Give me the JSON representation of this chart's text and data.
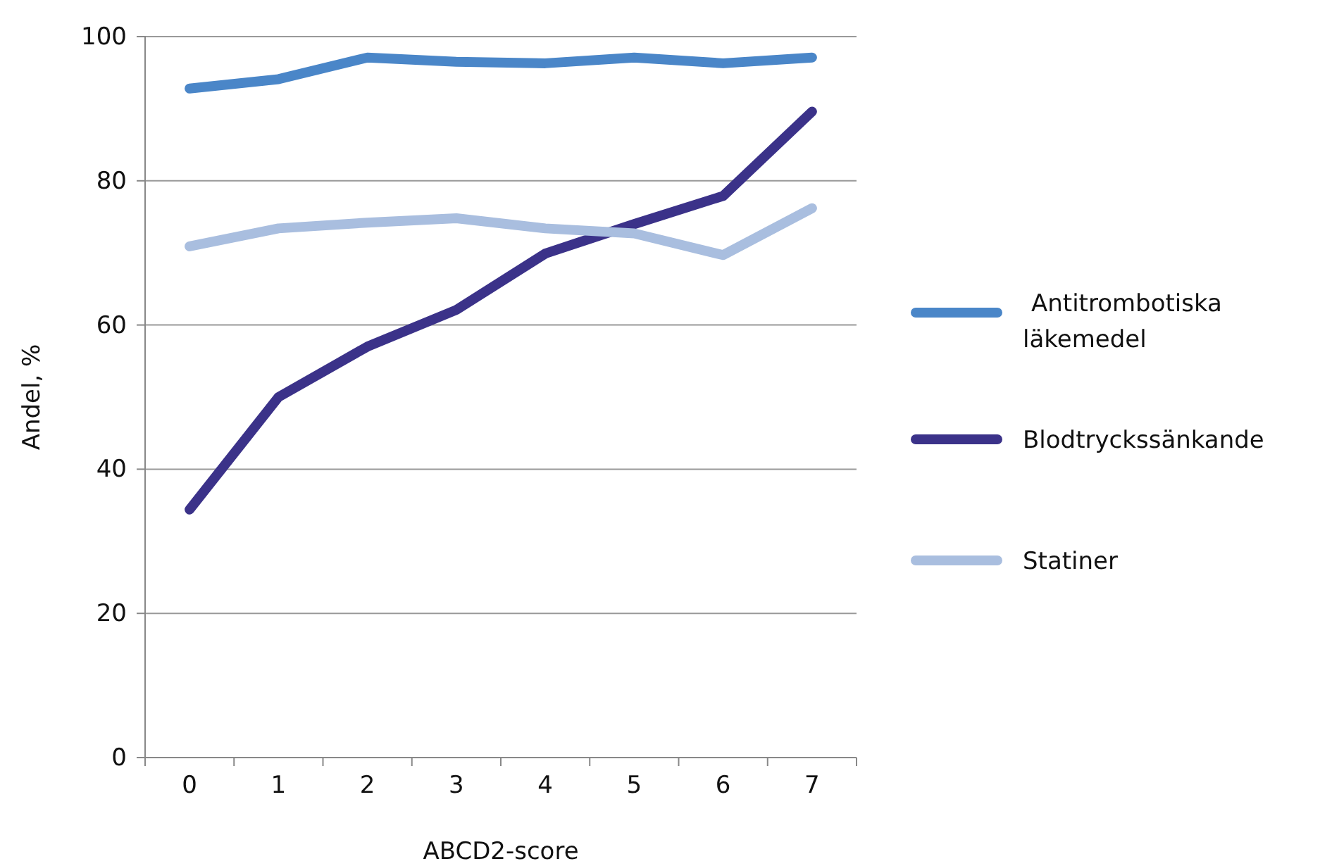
{
  "chart_data": {
    "type": "line",
    "xlabel": "ABCD2-score",
    "ylabel": "Andel, %",
    "categories": [
      "0",
      "1",
      "2",
      "3",
      "4",
      "5",
      "6",
      "7"
    ],
    "ylim": [
      0,
      100
    ],
    "yticks": [
      0,
      20,
      40,
      60,
      80,
      100
    ],
    "grid": "y",
    "legend": "right",
    "marker": "none",
    "line_style": "solid",
    "series": [
      {
        "name": "Antitrombotiska läkemedel",
        "color": "#4a86c8",
        "values": [
          92.8,
          94.1,
          97.1,
          96.5,
          96.3,
          97.1,
          96.3,
          97.1
        ]
      },
      {
        "name": "Blodtryckssänkande",
        "color": "#3b3289",
        "values": [
          34.4,
          50,
          57,
          62.1,
          69.9,
          74,
          77.9,
          89.6
        ]
      },
      {
        "name": "Statiner",
        "color": "#a9bedf",
        "values": [
          70.9,
          73.4,
          74.2,
          74.8,
          73.4,
          72.7,
          69.7,
          76.2
        ]
      }
    ]
  }
}
